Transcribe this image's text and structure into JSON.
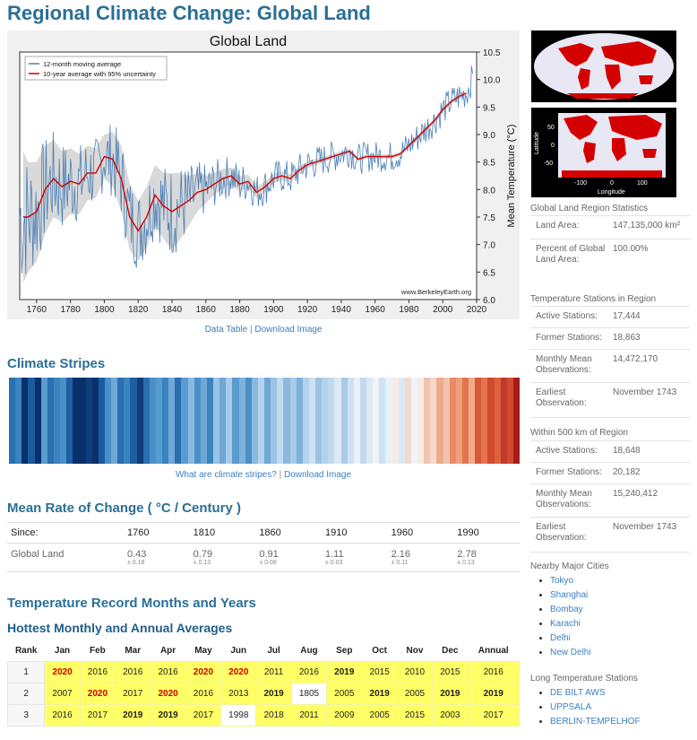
{
  "page_title": "Regional Climate Change: Global Land",
  "chart_data": {
    "type": "line",
    "title": "Global Land",
    "ylabel": "Mean Temperature (°C)",
    "xlim": [
      1750,
      2020
    ],
    "ylim": [
      6.0,
      10.5
    ],
    "x_ticks": [
      "1760",
      "1780",
      "1800",
      "1820",
      "1840",
      "1860",
      "1880",
      "1900",
      "1920",
      "1940",
      "1960",
      "1980",
      "2000",
      "2020"
    ],
    "y_ticks": [
      "10.5",
      "10.0",
      "9.5",
      "9.0",
      "8.5",
      "8.0",
      "7.5",
      "7.0",
      "6.5",
      "6.0"
    ],
    "legend": [
      "12-month moving average",
      "10-year average with 95% uncertainty"
    ],
    "legend_position": "top-left",
    "watermark": "www.BerkeleyEarth.org",
    "series": [
      {
        "name": "10-year average with 95% uncertainty",
        "color": "#d40000",
        "x": [
          1752,
          1755,
          1760,
          1765,
          1770,
          1775,
          1780,
          1785,
          1790,
          1795,
          1800,
          1805,
          1810,
          1815,
          1820,
          1825,
          1830,
          1835,
          1840,
          1845,
          1850,
          1855,
          1860,
          1865,
          1870,
          1875,
          1880,
          1885,
          1890,
          1895,
          1900,
          1905,
          1910,
          1915,
          1920,
          1925,
          1930,
          1935,
          1940,
          1945,
          1950,
          1955,
          1960,
          1965,
          1970,
          1975,
          1980,
          1985,
          1990,
          1995,
          2000,
          2005,
          2010,
          2014
        ],
        "y": [
          7.5,
          7.5,
          7.6,
          8.0,
          8.2,
          8.05,
          8.15,
          8.1,
          8.3,
          8.3,
          8.6,
          8.55,
          8.2,
          7.5,
          7.25,
          7.5,
          7.9,
          7.7,
          7.6,
          7.7,
          7.8,
          7.95,
          8.0,
          8.1,
          8.2,
          8.25,
          8.1,
          8.15,
          7.95,
          8.05,
          8.2,
          8.25,
          8.2,
          8.35,
          8.45,
          8.5,
          8.55,
          8.6,
          8.65,
          8.7,
          8.55,
          8.6,
          8.6,
          8.6,
          8.6,
          8.65,
          8.8,
          8.95,
          9.1,
          9.25,
          9.45,
          9.6,
          9.7,
          9.75
        ],
        "uncertainty": [
          1.2,
          1.0,
          0.9,
          0.8,
          0.7,
          0.65,
          0.6,
          0.55,
          0.5,
          0.45,
          0.4,
          0.5,
          0.6,
          0.6,
          0.55,
          0.55,
          0.55,
          0.6,
          0.7,
          0.6,
          0.45,
          0.35,
          0.25,
          0.2,
          0.18,
          0.15,
          0.14,
          0.12,
          0.1,
          0.1,
          0.09,
          0.08,
          0.08,
          0.07,
          0.06,
          0.06,
          0.05,
          0.05,
          0.05,
          0.05,
          0.04,
          0.04,
          0.04,
          0.04,
          0.04,
          0.04,
          0.04,
          0.04,
          0.04,
          0.04,
          0.04,
          0.04,
          0.04,
          0.04
        ]
      },
      {
        "name": "12-month moving average",
        "color": "#4a7fb5"
      }
    ]
  },
  "chart_links": {
    "data_table": "Data Table",
    "sep": "|",
    "download": "Download Image"
  },
  "stripes": {
    "heading": "Climate Stripes",
    "link1": "What are climate stripes?",
    "sep": "|",
    "link2": "Download Image",
    "colors": [
      "#2a6fb0",
      "#3a84c0",
      "#08306b",
      "#1a5a9e",
      "#08306b",
      "#5a9bd0",
      "#2a6fb0",
      "#3a84c0",
      "#4a90c8",
      "#1d5fa3",
      "#08306b",
      "#08306b",
      "#0e3d7a",
      "#08306b",
      "#1a5a9e",
      "#4a90c8",
      "#6fa8d6",
      "#2a6fb0",
      "#3a84c0",
      "#1d5fa3",
      "#0e3d7a",
      "#2a6fb0",
      "#4a90c8",
      "#5a9bd0",
      "#3a84c0",
      "#6fa8d6",
      "#2a6fb0",
      "#5a9bd0",
      "#8ab9df",
      "#4a90c8",
      "#6fa8d6",
      "#3a84c0",
      "#9ac3e5",
      "#6fa8d6",
      "#a9cbe8",
      "#5a9bd0",
      "#7fb2db",
      "#4a90c8",
      "#8ab9df",
      "#b5d2eb",
      "#6fa8d6",
      "#9ac3e5",
      "#c2daee",
      "#8ab9df",
      "#a9cbe8",
      "#7fb2db",
      "#b5d2eb",
      "#cfe2f1",
      "#9ac3e5",
      "#b5d2eb",
      "#c2daee",
      "#dbe9f5",
      "#a9cbe8",
      "#cfe2f1",
      "#e8f1f9",
      "#c2daee",
      "#dbe9f5",
      "#eef4fa",
      "#cfe2f1",
      "#e8f1f9",
      "#f7ebe4",
      "#dbe9f5",
      "#f2d9cc",
      "#eef4fa",
      "#f7ebe4",
      "#f0c4ae",
      "#f2d9cc",
      "#eeab8c",
      "#f0c4ae",
      "#e98a64",
      "#ee9f7d",
      "#e3754d",
      "#eeab8c",
      "#d9583a",
      "#e3754d",
      "#d04a30",
      "#e0603e",
      "#c0392b",
      "#d04a30",
      "#a61c1c"
    ]
  },
  "rate": {
    "heading": "Mean Rate of Change ( °C / Century )",
    "since_label": "Since:",
    "years": [
      "1760",
      "1810",
      "1860",
      "1910",
      "1960",
      "1990"
    ],
    "row_label": "Global Land",
    "values": [
      "0.43",
      "0.79",
      "0.91",
      "1.11",
      "2.16",
      "2.78"
    ],
    "unc": [
      "± 0.18",
      "± 0.13",
      "± 0.08",
      "± 0.03",
      "± 0.11",
      "± 0.13"
    ]
  },
  "records": {
    "heading": "Temperature Record Months and Years",
    "subheading": "Hottest Monthly and Annual Averages",
    "headers": [
      "Rank",
      "Jan",
      "Feb",
      "Mar",
      "Apr",
      "May",
      "Jun",
      "Jul",
      "Aug",
      "Sep",
      "Oct",
      "Nov",
      "Dec",
      "Annual"
    ],
    "rows": [
      [
        "1",
        "2020",
        "2016",
        "2016",
        "2016",
        "2020",
        "2020",
        "2011",
        "2016",
        "2019",
        "2015",
        "2010",
        "2015",
        "2016"
      ],
      [
        "2",
        "2007",
        "2020",
        "2017",
        "2020",
        "2016",
        "2013",
        "2019",
        "1805",
        "2005",
        "2019",
        "2005",
        "2019",
        "2019"
      ],
      [
        "3",
        "2016",
        "2017",
        "2019",
        "2019",
        "2017",
        "1998",
        "2018",
        "2011",
        "2009",
        "2005",
        "2015",
        "2003",
        "2017"
      ]
    ]
  },
  "sidebar": {
    "region_stats_title": "Global Land Region Statistics",
    "land_area_label": "Land Area:",
    "land_area_value": "147,135,000 km²",
    "percent_label": "Percent of Global Land Area:",
    "percent_value": "100.00%",
    "stations_title": "Temperature Stations in Region",
    "active_label": "Active Stations:",
    "active_value": "17,444",
    "former_label": "Former Stations:",
    "former_value": "18,863",
    "monthly_label": "Monthly Mean Observations:",
    "monthly_value": "14,472,170",
    "earliest_label": "Earliest Observation:",
    "earliest_value": "November 1743",
    "within_title": "Within 500 km of Region",
    "w_active_value": "18,648",
    "w_former_value": "20,182",
    "w_monthly_value": "15,240,412",
    "w_earliest_value": "November 1743",
    "cities_title": "Nearby Major Cities",
    "cities": [
      "Tokyo",
      "Shanghai",
      "Bombay",
      "Karachi",
      "Delhi",
      "New Delhi"
    ],
    "long_title": "Long Temperature Stations",
    "long_stations": [
      "DE BILT AWS",
      "UPPSALA",
      "BERLIN-TEMPELHOF"
    ],
    "map_lat_label": "Latitude",
    "map_lon_label": "Longitude",
    "map_lat_ticks": [
      "50",
      "0",
      "-50"
    ],
    "map_lon_ticks": [
      "-100",
      "0",
      "100"
    ]
  }
}
